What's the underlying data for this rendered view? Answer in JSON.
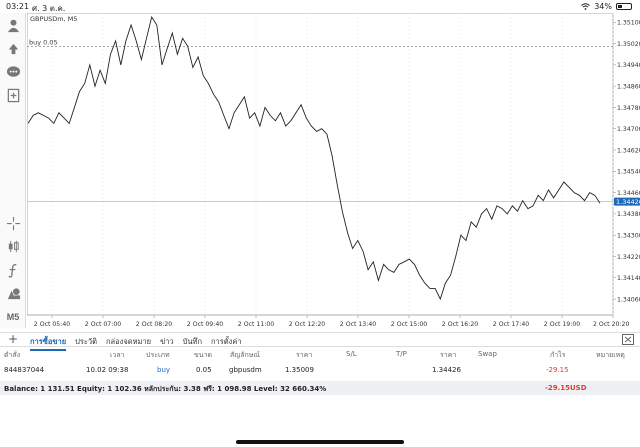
{
  "status_bar": {
    "time": "03:21",
    "date": "ศ. 3 ต.ค.",
    "battery": "34%",
    "battery_level": 0.34
  },
  "chart": {
    "symbol_title": "GBPUSDm, M5",
    "order_line_label": "buy 0.05",
    "current_price": "1.34426",
    "colors": {
      "accent": "#1e6ab8",
      "loss": "#e53935",
      "price_tag": "#1e6ab8"
    }
  },
  "chart_data": {
    "type": "line",
    "title": "GBPUSDm, M5",
    "x_ticks": [
      "2 Oct 05:40",
      "2 Oct 07:00",
      "2 Oct 08:20",
      "2 Oct 09:40",
      "2 Oct 11:00",
      "2 Oct 12:20",
      "2 Oct 13:40",
      "2 Oct 15:00",
      "2 Oct 16:20",
      "2 Oct 17:40",
      "2 Oct 19:00",
      "2 Oct 20:20"
    ],
    "y_ticks": [
      "1.35100",
      "1.35020",
      "1.34940",
      "1.34860",
      "1.34780",
      "1.34700",
      "1.34620",
      "1.34540",
      "1.34460",
      "1.34380",
      "1.34300",
      "1.34220",
      "1.34140",
      "1.34060"
    ],
    "ylim": [
      1.34,
      1.35135
    ],
    "entry_price": 1.35009,
    "current_price": 1.34426,
    "series": [
      {
        "values": [
          1.3472,
          1.3475,
          1.3476,
          1.3475,
          1.3474,
          1.3472,
          1.3476,
          1.3474,
          1.3472,
          1.3478,
          1.3484,
          1.3487,
          1.3494,
          1.3486,
          1.3492,
          1.3487,
          1.3498,
          1.3503,
          1.3494,
          1.3503,
          1.3509,
          1.3503,
          1.3496,
          1.3504,
          1.3512,
          1.3509,
          1.3494,
          1.35,
          1.3506,
          1.3498,
          1.3504,
          1.3501,
          1.3493,
          1.3497,
          1.349,
          1.3487,
          1.3483,
          1.348,
          1.3475,
          1.347,
          1.3476,
          1.3479,
          1.3482,
          1.3474,
          1.3476,
          1.3471,
          1.3478,
          1.3475,
          1.3473,
          1.3476,
          1.3471,
          1.3473,
          1.3476,
          1.3479,
          1.3474,
          1.3471,
          1.3469,
          1.347,
          1.3468,
          1.346,
          1.3449,
          1.3439,
          1.3431,
          1.3425,
          1.3428,
          1.3424,
          1.3417,
          1.342,
          1.3413,
          1.3419,
          1.3417,
          1.3416,
          1.3419,
          1.342,
          1.3421,
          1.3419,
          1.3415,
          1.3412,
          1.341,
          1.341,
          1.3406,
          1.3412,
          1.3415,
          1.3422,
          1.343,
          1.3428,
          1.3435,
          1.3433,
          1.3438,
          1.344,
          1.3436,
          1.3441,
          1.344,
          1.3438,
          1.3441,
          1.3439,
          1.3443,
          1.344,
          1.3441,
          1.3445,
          1.3443,
          1.3447,
          1.3444,
          1.3447,
          1.345,
          1.3448,
          1.3446,
          1.3445,
          1.3443,
          1.3446,
          1.3445,
          1.3442
        ]
      }
    ]
  },
  "toolbar": {
    "icons": [
      "user-icon",
      "order-icon",
      "chat-icon",
      "new-document-icon",
      "crosshair-icon",
      "candles-icon",
      "function-icon",
      "objects-icon",
      "timeframe-icon"
    ],
    "timeframe_label": "M5"
  },
  "tabs": [
    "การซื้อขาย",
    "ประวัติ",
    "กล่องจดหมาย",
    "ข่าว",
    "บันทึก",
    "การตั้งค่า"
  ],
  "trade_table": {
    "headers": [
      "ตำสั่ง",
      "เวลา",
      "ประเภท",
      "ขนาด",
      "สัญลักษณ์",
      "ราคา",
      "S/L",
      "T/P",
      "ราคา",
      "Swap",
      "กำไร",
      "หมายเหตุ"
    ],
    "row": {
      "order": "844837044",
      "time": "10.02 09:38",
      "type": "buy",
      "size": "0.05",
      "symbol": "gbpusdm",
      "open_price": "1.35009",
      "sl": "",
      "tp": "",
      "price": "1.34426",
      "swap": "",
      "profit": "-29.15",
      "comment": ""
    },
    "summary": "Balance: 1 131.51 Equity: 1 102.36 หลักประกัน: 3.38 ฟรี: 1 098.98 Level: 32 660.34%",
    "summary_profit": "-29.15",
    "summary_currency": "USD"
  }
}
